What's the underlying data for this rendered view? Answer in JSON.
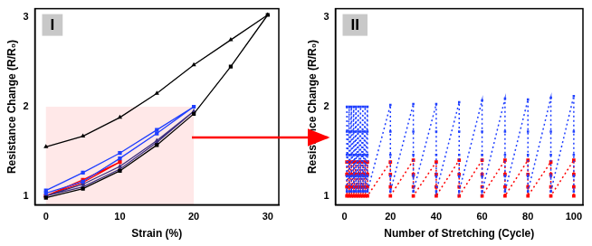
{
  "chart_data": [
    {
      "type": "line",
      "title": "I",
      "x_label": "Strain (%)",
      "y_label": "Resistance Change (R/R₀)",
      "xlim": [
        -1.5,
        31.5
      ],
      "xticks": [
        0,
        10,
        20,
        30
      ],
      "ylim": [
        0.9,
        3.1
      ],
      "yticks": [
        1,
        2,
        3
      ],
      "grid": false,
      "highlight": {
        "x_range": [
          0,
          20
        ],
        "y_range": [
          0.9,
          2
        ]
      },
      "series": [
        {
          "color": "#000000",
          "marker": "triangle",
          "line_style": "solid",
          "x": [
            0,
            5,
            10,
            15,
            20,
            25,
            30
          ],
          "values": [
            1.55,
            1.67,
            1.88,
            2.15,
            2.47,
            2.75,
            3.03
          ]
        },
        {
          "color": "#000000",
          "marker": "square",
          "line_style": "solid",
          "x": [
            0,
            5,
            10,
            15,
            20,
            25,
            30
          ],
          "values": [
            0.98,
            1.08,
            1.28,
            1.57,
            1.92,
            2.45,
            3.03
          ]
        },
        {
          "color": "#1f3fff",
          "marker": "square",
          "line_style": "solid",
          "x": [
            0,
            5,
            10,
            15,
            20,
            15,
            10,
            5,
            0
          ],
          "values": [
            1.06,
            1.26,
            1.48,
            1.74,
            2.0,
            1.7,
            1.42,
            1.16,
            1.03
          ]
        },
        {
          "color": "#3b2f7f",
          "marker": "triangle",
          "line_style": "solid",
          "x": [
            0,
            5,
            10,
            15,
            20,
            15,
            10,
            5,
            0
          ],
          "values": [
            1.0,
            1.13,
            1.33,
            1.62,
            1.95,
            1.6,
            1.3,
            1.1,
            1.0
          ]
        },
        {
          "color": "#ff0000",
          "marker": "square",
          "line_style": "solid",
          "x": [
            0,
            5,
            10,
            5,
            0
          ],
          "values": [
            1.0,
            1.18,
            1.38,
            1.15,
            1.0
          ]
        }
      ]
    },
    {
      "type": "line",
      "title": "II",
      "x_label": "Number of Stretching (Cycle)",
      "y_label": "Resistance Change (R/R₀)",
      "xlim": [
        -4,
        104
      ],
      "xticks": [
        0,
        20,
        40,
        60,
        80,
        100
      ],
      "ylim": [
        0.9,
        3.1
      ],
      "yticks": [
        1,
        2,
        3
      ],
      "grid": false,
      "series": [
        {
          "color": "#1f3fff",
          "marker": "square",
          "line_style": "dotted",
          "x": [
            1,
            1,
            1,
            1,
            1,
            2,
            2,
            2,
            2,
            2,
            3,
            3,
            3,
            3,
            3,
            4,
            4,
            4,
            4,
            4,
            5,
            5,
            5,
            5,
            5,
            6,
            6,
            6,
            6,
            6,
            7,
            7,
            7,
            7,
            7,
            8,
            8,
            8,
            8,
            8,
            9,
            9,
            9,
            9,
            9,
            10,
            10,
            10,
            10,
            10,
            20,
            20,
            20,
            20,
            20,
            30,
            30,
            30,
            30,
            30,
            40,
            40,
            40,
            40,
            40,
            50,
            50,
            50,
            50,
            50,
            60,
            60,
            60,
            60,
            60,
            70,
            70,
            70,
            70,
            70,
            80,
            80,
            80,
            80,
            80,
            90,
            90,
            90,
            90,
            90,
            100,
            100,
            100,
            100,
            100
          ],
          "values": [
            2.0,
            1.72,
            1.46,
            1.22,
            1.05,
            2.0,
            1.72,
            1.46,
            1.22,
            1.05,
            2.0,
            1.72,
            1.46,
            1.22,
            1.05,
            2.0,
            1.72,
            1.46,
            1.22,
            1.05,
            2.0,
            1.72,
            1.46,
            1.22,
            1.05,
            2.0,
            1.72,
            1.46,
            1.22,
            1.05,
            2.0,
            1.72,
            1.46,
            1.22,
            1.05,
            2.0,
            1.72,
            1.46,
            1.22,
            1.05,
            2.0,
            1.72,
            1.46,
            1.22,
            1.05,
            2.0,
            1.72,
            1.46,
            1.22,
            1.05,
            2.02,
            1.72,
            1.46,
            1.22,
            1.05,
            2.03,
            1.72,
            1.46,
            1.22,
            1.05,
            2.03,
            1.72,
            1.46,
            1.22,
            1.05,
            2.05,
            1.72,
            1.46,
            1.22,
            1.05,
            2.07,
            1.72,
            1.46,
            1.22,
            1.05,
            2.09,
            1.72,
            1.46,
            1.22,
            1.05,
            2.08,
            1.72,
            1.46,
            1.22,
            1.05,
            2.1,
            1.72,
            1.46,
            1.22,
            1.05,
            2.12,
            1.72,
            1.46,
            1.22,
            1.05
          ]
        },
        {
          "color": "#ff0000",
          "marker": "square",
          "line_style": "dotted",
          "x": [
            1,
            1,
            1,
            1,
            2,
            2,
            2,
            2,
            3,
            3,
            3,
            3,
            4,
            4,
            4,
            4,
            5,
            5,
            5,
            5,
            6,
            6,
            6,
            6,
            7,
            7,
            7,
            7,
            8,
            8,
            8,
            8,
            9,
            9,
            9,
            9,
            10,
            10,
            10,
            10,
            20,
            20,
            20,
            20,
            30,
            30,
            30,
            30,
            40,
            40,
            40,
            40,
            50,
            50,
            50,
            50,
            60,
            60,
            60,
            60,
            70,
            70,
            70,
            70,
            80,
            80,
            80,
            80,
            90,
            90,
            90,
            90,
            100,
            100,
            100,
            100
          ],
          "values": [
            1.38,
            1.24,
            1.1,
            1.0,
            1.38,
            1.24,
            1.1,
            1.0,
            1.38,
            1.24,
            1.1,
            1.0,
            1.38,
            1.24,
            1.1,
            1.0,
            1.38,
            1.24,
            1.1,
            1.0,
            1.38,
            1.24,
            1.1,
            1.0,
            1.38,
            1.24,
            1.1,
            1.0,
            1.38,
            1.24,
            1.1,
            1.0,
            1.38,
            1.24,
            1.1,
            1.0,
            1.38,
            1.24,
            1.1,
            1.0,
            1.38,
            1.24,
            1.1,
            1.0,
            1.4,
            1.24,
            1.1,
            1.0,
            1.38,
            1.24,
            1.1,
            1.0,
            1.4,
            1.24,
            1.1,
            1.0,
            1.4,
            1.24,
            1.1,
            1.0,
            1.4,
            1.24,
            1.1,
            1.0,
            1.4,
            1.24,
            1.1,
            1.0,
            1.38,
            1.24,
            1.1,
            1.0,
            1.4,
            1.24,
            1.1,
            1.0
          ]
        }
      ]
    }
  ]
}
